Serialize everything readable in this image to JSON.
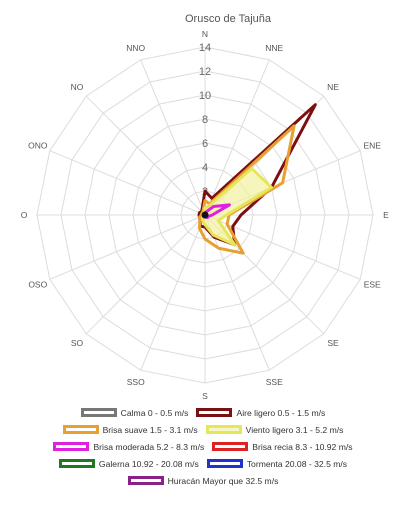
{
  "chart_data": {
    "type": "radar",
    "title": "Orusco de Tajuña",
    "directions": [
      "N",
      "NNE",
      "NE",
      "ENE",
      "E",
      "ESE",
      "SE",
      "SSE",
      "S",
      "SSO",
      "SO",
      "OSO",
      "O",
      "ONO",
      "NO",
      "NNO"
    ],
    "radial_ticks": [
      "2",
      "4",
      "6",
      "8",
      "10",
      "12",
      "14"
    ],
    "rmax": 14,
    "grid": true,
    "legend_position": "bottom",
    "series": [
      {
        "name": "Calma 0 - 0.5 m/s",
        "color": "#777777",
        "fill": "#bbbbbb",
        "values": [
          0.3,
          0.2,
          0.2,
          0.2,
          0.2,
          0.2,
          0.2,
          0.2,
          0.2,
          0.2,
          0.2,
          0.2,
          0.2,
          0.2,
          0.2,
          0.2
        ]
      },
      {
        "name": "Aire ligero 0.5 - 1.5 m/s",
        "color": "#7b1010",
        "fill": "none",
        "values": [
          2.0,
          1.5,
          13.0,
          6.0,
          3.0,
          2.5,
          3.5,
          2.0,
          1.0,
          1.0,
          0.6,
          0.5,
          0.5,
          0.5,
          0.4,
          0.6
        ]
      },
      {
        "name": "Brisa suave 1.5 - 3.1 m/s",
        "color": "#e8a030",
        "fill": "none",
        "values": [
          1.2,
          1.0,
          10.5,
          7.0,
          2.0,
          2.0,
          4.5,
          3.0,
          2.0,
          1.2,
          0.6,
          0.5,
          0.3,
          0.3,
          0.3,
          0.4
        ]
      },
      {
        "name": "Viento ligero 3.1 - 5.2 m/s",
        "color": "#e6e65a",
        "fill": "#f2f2a0",
        "values": [
          0.6,
          0.8,
          5.5,
          6.0,
          1.8,
          1.2,
          3.5,
          1.8,
          0.8,
          0.5,
          0.3,
          0.2,
          0.2,
          0.2,
          0.2,
          0.2
        ]
      },
      {
        "name": "Brisa moderada 5.2 - 8.3 m/s",
        "color": "#e020e0",
        "fill": "none",
        "values": [
          0.2,
          0.3,
          1.0,
          2.2,
          0.6,
          0.3,
          0.3,
          0.2,
          0.1,
          0.1,
          0.1,
          0.1,
          0.1,
          0.1,
          0.1,
          0.1
        ]
      },
      {
        "name": "Brisa recia 8.3 - 10.92 m/s",
        "color": "#dd2222",
        "fill": "none",
        "values": [
          0.1,
          0.1,
          0.1,
          0.1,
          0.1,
          0.1,
          0.1,
          0.1,
          0.1,
          0.1,
          0.1,
          0.1,
          0.1,
          0.1,
          0.1,
          0.1
        ]
      },
      {
        "name": "Galerna 10.92 - 20.08 m/s",
        "color": "#227722",
        "fill": "none",
        "values": [
          0,
          0,
          0,
          0,
          0,
          0,
          0,
          0,
          0,
          0,
          0,
          0,
          0,
          0,
          0,
          0
        ]
      },
      {
        "name": "Tormenta 20.08 - 32.5 m/s",
        "color": "#2233cc",
        "fill": "none",
        "values": [
          0,
          0,
          0,
          0,
          0,
          0,
          0,
          0,
          0,
          0,
          0,
          0,
          0,
          0,
          0,
          0
        ]
      },
      {
        "name": "Huracán Mayor que 32.5 m/s",
        "color": "#882288",
        "fill": "none",
        "values": [
          0,
          0,
          0,
          0,
          0,
          0,
          0,
          0,
          0,
          0,
          0,
          0,
          0,
          0,
          0,
          0
        ]
      }
    ]
  }
}
